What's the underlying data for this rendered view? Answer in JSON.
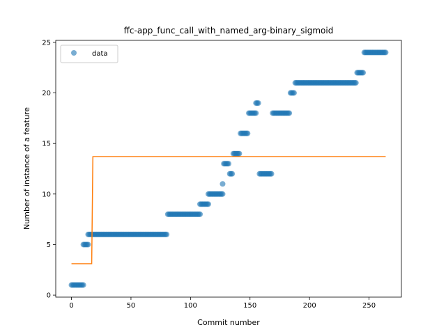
{
  "chart_data": {
    "type": "scatter",
    "title": "ffc-app_func_call_with_named_arg-binary_sigmoid",
    "xlabel": "Commit number",
    "ylabel": "Number of instance of a feature",
    "xlim": [
      -13.2,
      277.2
    ],
    "ylim": [
      -0.2,
      25.2
    ],
    "xticks": [
      0,
      50,
      100,
      150,
      200,
      250
    ],
    "yticks": [
      0,
      5,
      10,
      15,
      20,
      25
    ],
    "grid": false,
    "legend": {
      "entries": [
        "data"
      ],
      "placement": "top-left"
    },
    "colors": {
      "scatter": "#1f77b4",
      "fit": "#ff7f0e"
    },
    "series": [
      {
        "name": "data",
        "kind": "scatter",
        "segments": [
          {
            "x_start": 0,
            "x_end": 10,
            "y": 1
          },
          {
            "x_start": 10,
            "x_end": 14,
            "y": 5
          },
          {
            "x_start": 14,
            "x_end": 80,
            "y": 6
          },
          {
            "x_start": 81,
            "x_end": 108,
            "y": 8
          },
          {
            "x_start": 108,
            "x_end": 115,
            "y": 9
          },
          {
            "x_start": 115,
            "x_end": 127,
            "y": 10
          },
          {
            "x_start": 127,
            "x_end": 127,
            "y": 11
          },
          {
            "x_start": 128,
            "x_end": 132,
            "y": 13
          },
          {
            "x_start": 133,
            "x_end": 135,
            "y": 12
          },
          {
            "x_start": 136,
            "x_end": 141,
            "y": 14
          },
          {
            "x_start": 142,
            "x_end": 148,
            "y": 16
          },
          {
            "x_start": 149,
            "x_end": 155,
            "y": 18
          },
          {
            "x_start": 155,
            "x_end": 157,
            "y": 19
          },
          {
            "x_start": 158,
            "x_end": 168,
            "y": 12
          },
          {
            "x_start": 169,
            "x_end": 183,
            "y": 18
          },
          {
            "x_start": 184,
            "x_end": 187,
            "y": 20
          },
          {
            "x_start": 188,
            "x_end": 239,
            "y": 21
          },
          {
            "x_start": 240,
            "x_end": 245,
            "y": 22
          },
          {
            "x_start": 246,
            "x_end": 264,
            "y": 24
          }
        ]
      },
      {
        "name": "",
        "kind": "line",
        "points": [
          [
            0,
            3.1
          ],
          [
            17,
            3.1
          ],
          [
            18,
            13.7
          ],
          [
            264,
            13.7
          ]
        ]
      }
    ]
  }
}
